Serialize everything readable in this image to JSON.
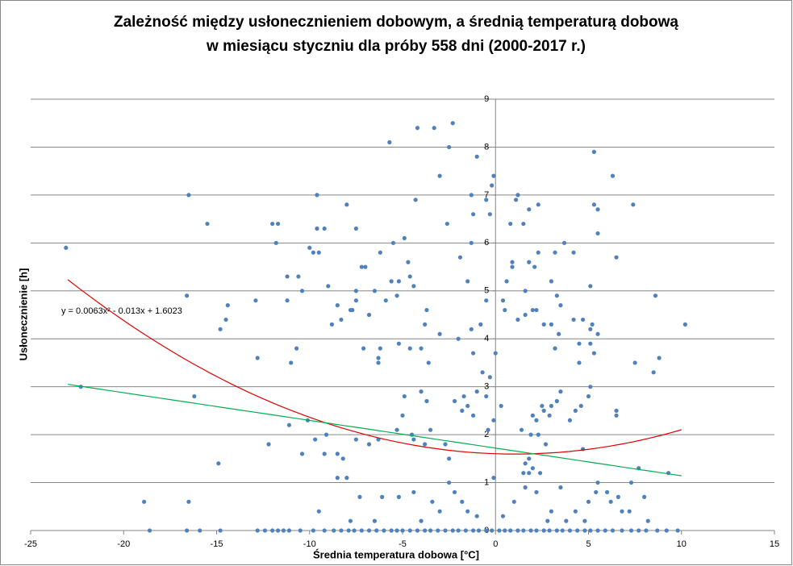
{
  "chart_data": {
    "type": "scatter",
    "title": [
      "Zależność między usłonecznieniem dobowym, a średnią temperaturą dobową",
      "w miesiącu styczniu dla próby 558 dni (2000-2017 r.)"
    ],
    "x_label": "Średnia temperatura dobowa [°C]",
    "y_label": "Usłonecznienie [h]",
    "annotation": "y = 0.0063x² - 0.013x + 1.6023",
    "color": "#4f81bd",
    "xlim": [
      -25,
      15
    ],
    "xticks": [
      -25,
      -20,
      -15,
      -10,
      -5,
      0,
      5,
      10,
      15
    ],
    "ylim": [
      0,
      9
    ],
    "yticks": [
      0,
      1,
      2,
      3,
      4,
      5,
      6,
      7,
      8,
      9
    ],
    "grid": true,
    "trendlines": [
      {
        "kind": "polynomial",
        "coefficients": [
          0.0063,
          -0.013,
          1.6023
        ],
        "color": "#e00000",
        "x_range": [
          -23,
          10
        ]
      },
      {
        "kind": "linear",
        "coefficients": [
          -0.0578,
          1.72
        ],
        "color": "#00b050",
        "x_range": [
          -23,
          10
        ]
      }
    ],
    "points": [
      [
        -23.1,
        5.9
      ],
      [
        -22.3,
        3.0
      ],
      [
        -16.5,
        7.0
      ],
      [
        -16.6,
        4.9
      ],
      [
        -16.2,
        2.8
      ],
      [
        -15.5,
        6.4
      ],
      [
        -14.8,
        4.2
      ],
      [
        -14.5,
        4.4
      ],
      [
        -14.4,
        4.7
      ],
      [
        -14.9,
        1.4
      ],
      [
        -18.9,
        0.6
      ],
      [
        -16.5,
        0.6
      ],
      [
        -18.6,
        0
      ],
      [
        -16.6,
        0
      ],
      [
        -15.9,
        0
      ],
      [
        -14.8,
        0
      ],
      [
        -12.9,
        4.8
      ],
      [
        -12.8,
        3.6
      ],
      [
        -12.0,
        6.4
      ],
      [
        -11.7,
        6.4
      ],
      [
        -11.8,
        6.0
      ],
      [
        -11.2,
        5.3
      ],
      [
        -11.2,
        4.8
      ],
      [
        -11.0,
        3.5
      ],
      [
        -10.7,
        3.8
      ],
      [
        -10.6,
        5.3
      ],
      [
        -10.4,
        5.0
      ],
      [
        -10.0,
        5.9
      ],
      [
        -9.8,
        5.8
      ],
      [
        -9.6,
        6.3
      ],
      [
        -9.6,
        7.0
      ],
      [
        -9.5,
        5.8
      ],
      [
        -9.2,
        6.3
      ],
      [
        -9.0,
        5.1
      ],
      [
        -8.8,
        4.3
      ],
      [
        -8.5,
        4.7
      ],
      [
        -8.0,
        6.8
      ],
      [
        -8.3,
        4.4
      ],
      [
        -7.5,
        6.3
      ],
      [
        -7.5,
        4.8
      ],
      [
        -7.8,
        4.6
      ],
      [
        -7.7,
        4.6
      ],
      [
        -7.5,
        5.0
      ],
      [
        -7.2,
        5.5
      ],
      [
        -7.0,
        5.5
      ],
      [
        -6.5,
        5.0
      ],
      [
        -6.8,
        4.5
      ],
      [
        -6.2,
        5.8
      ],
      [
        -5.9,
        4.8
      ],
      [
        -5.6,
        5.2
      ],
      [
        -5.5,
        6.0
      ],
      [
        -5.2,
        5.2
      ],
      [
        -5.3,
        4.9
      ],
      [
        -4.9,
        6.1
      ],
      [
        -4.7,
        5.6
      ],
      [
        -4.6,
        5.3
      ],
      [
        -4.4,
        5.1
      ],
      [
        -6.2,
        3.8
      ],
      [
        -6.3,
        3.6
      ],
      [
        -6.3,
        3.5
      ],
      [
        -7.1,
        3.8
      ],
      [
        -5.2,
        3.9
      ],
      [
        -4.6,
        3.8
      ],
      [
        -4.0,
        3.8
      ],
      [
        -5.7,
        8.1
      ],
      [
        -4.2,
        8.4
      ],
      [
        -3.3,
        8.4
      ],
      [
        -2.3,
        8.5
      ],
      [
        -2.5,
        8.0
      ],
      [
        -3.0,
        7.4
      ],
      [
        -4.3,
        6.9
      ],
      [
        -2.6,
        6.4
      ],
      [
        -1.9,
        5.7
      ],
      [
        -1.3,
        6.0
      ],
      [
        -1.5,
        5.2
      ],
      [
        -0.5,
        4.8
      ],
      [
        -0.8,
        4.3
      ],
      [
        0.0,
        3.7
      ],
      [
        -0.3,
        3.2
      ],
      [
        -1.3,
        4.2
      ],
      [
        -2.0,
        4.0
      ],
      [
        -1.2,
        3.7
      ],
      [
        -3.0,
        4.1
      ],
      [
        -3.7,
        4.6
      ],
      [
        -3.8,
        4.3
      ],
      [
        -3.6,
        3.5
      ],
      [
        -4.0,
        2.9
      ],
      [
        -3.7,
        2.7
      ],
      [
        -2.2,
        2.7
      ],
      [
        -1.8,
        2.5
      ],
      [
        -1.7,
        2.8
      ],
      [
        -1.5,
        2.6
      ],
      [
        -1.2,
        2.4
      ],
      [
        -0.5,
        2.8
      ],
      [
        -0.7,
        3.3
      ],
      [
        -1.0,
        2.9
      ],
      [
        0.3,
        2.6
      ],
      [
        -0.1,
        2.3
      ],
      [
        -0.4,
        2.1
      ],
      [
        -4.9,
        2.8
      ],
      [
        -5.0,
        2.4
      ],
      [
        -4.5,
        2.0
      ],
      [
        -4.4,
        1.9
      ],
      [
        -3.8,
        1.8
      ],
      [
        -3.5,
        2.1
      ],
      [
        -2.7,
        1.8
      ],
      [
        -2.5,
        1.5
      ],
      [
        -1.3,
        7.0
      ],
      [
        -1.0,
        7.8
      ],
      [
        -0.5,
        6.9
      ],
      [
        -0.2,
        7.2
      ],
      [
        -0.1,
        7.4
      ],
      [
        -0.3,
        6.6
      ],
      [
        -1.2,
        6.6
      ],
      [
        1.2,
        7.0
      ],
      [
        1.1,
        6.9
      ],
      [
        1.8,
        6.7
      ],
      [
        2.3,
        6.8
      ],
      [
        1.5,
        6.4
      ],
      [
        0.8,
        6.4
      ],
      [
        0.9,
        5.6
      ],
      [
        0.9,
        5.5
      ],
      [
        0.6,
        5.2
      ],
      [
        0.4,
        4.8
      ],
      [
        0.5,
        4.6
      ],
      [
        1.2,
        4.4
      ],
      [
        1.6,
        5.0
      ],
      [
        1.8,
        5.6
      ],
      [
        2.3,
        5.8
      ],
      [
        2.1,
        5.5
      ],
      [
        3.2,
        5.8
      ],
      [
        4.2,
        5.8
      ],
      [
        3.7,
        6.0
      ],
      [
        3.0,
        5.2
      ],
      [
        3.3,
        4.9
      ],
      [
        3.5,
        4.7
      ],
      [
        2.0,
        4.6
      ],
      [
        2.2,
        4.6
      ],
      [
        2.6,
        4.3
      ],
      [
        3.0,
        4.3
      ],
      [
        3.4,
        4.1
      ],
      [
        3.2,
        3.8
      ],
      [
        1.6,
        4.5
      ],
      [
        4.2,
        4.4
      ],
      [
        4.5,
        3.9
      ],
      [
        4.5,
        3.5
      ],
      [
        4.7,
        4.4
      ],
      [
        5.1,
        4.2
      ],
      [
        5.1,
        3.9
      ],
      [
        5.2,
        4.3
      ],
      [
        5.3,
        3.7
      ],
      [
        5.5,
        4.1
      ],
      [
        5.1,
        5.1
      ],
      [
        5.3,
        6.8
      ],
      [
        5.5,
        6.7
      ],
      [
        5.5,
        6.2
      ],
      [
        5.3,
        7.9
      ],
      [
        6.3,
        7.4
      ],
      [
        6.5,
        5.7
      ],
      [
        7.4,
        6.8
      ],
      [
        7.5,
        3.5
      ],
      [
        8.6,
        4.9
      ],
      [
        8.8,
        3.6
      ],
      [
        8.5,
        3.3
      ],
      [
        10.2,
        4.3
      ],
      [
        6.5,
        2.5
      ],
      [
        6.5,
        2.4
      ],
      [
        5.1,
        3.0
      ],
      [
        5.0,
        2.8
      ],
      [
        4.6,
        2.6
      ],
      [
        4.3,
        2.5
      ],
      [
        4.0,
        2.3
      ],
      [
        3.5,
        2.9
      ],
      [
        3.3,
        2.7
      ],
      [
        3.0,
        2.6
      ],
      [
        2.9,
        2.4
      ],
      [
        2.6,
        2.5
      ],
      [
        2.5,
        2.6
      ],
      [
        2.2,
        2.3
      ],
      [
        2.0,
        2.4
      ],
      [
        2.3,
        2.0
      ],
      [
        2.7,
        1.8
      ],
      [
        1.9,
        2.0
      ],
      [
        1.4,
        2.1
      ],
      [
        1.8,
        1.5
      ],
      [
        1.6,
        1.4
      ],
      [
        1.5,
        1.2
      ],
      [
        1.8,
        1.2
      ],
      [
        2.0,
        1.3
      ],
      [
        2.4,
        1.2
      ],
      [
        4.7,
        1.7
      ],
      [
        5.4,
        0.8
      ],
      [
        6.0,
        0.8
      ],
      [
        5.5,
        1.0
      ],
      [
        6.6,
        0.7
      ],
      [
        7.3,
        1.0
      ],
      [
        7.7,
        1.3
      ],
      [
        9.3,
        1.2
      ],
      [
        8.0,
        0.7
      ],
      [
        7.2,
        0.4
      ],
      [
        8.2,
        0.2
      ],
      [
        -12.2,
        1.8
      ],
      [
        -11.1,
        2.2
      ],
      [
        -10.1,
        2.3
      ],
      [
        -10.4,
        1.6
      ],
      [
        -9.7,
        1.9
      ],
      [
        -9.1,
        2.0
      ],
      [
        -9.2,
        1.6
      ],
      [
        -8.5,
        1.6
      ],
      [
        -8.2,
        1.5
      ],
      [
        -8.0,
        1.1
      ],
      [
        -7.5,
        1.9
      ],
      [
        -6.8,
        1.8
      ],
      [
        -6.3,
        1.9
      ],
      [
        -5.3,
        2.1
      ],
      [
        -8.5,
        1.1
      ],
      [
        -9.5,
        0.4
      ],
      [
        -7.3,
        0.7
      ],
      [
        -6.1,
        0.7
      ],
      [
        -5.2,
        0.7
      ],
      [
        -4.4,
        0.8
      ],
      [
        -3.4,
        0.6
      ],
      [
        -2.5,
        1.0
      ],
      [
        -2.2,
        0.8
      ],
      [
        -3.0,
        0.4
      ],
      [
        -1.8,
        0.6
      ],
      [
        -1.5,
        0.4
      ],
      [
        -1.0,
        0.3
      ],
      [
        -0.1,
        1.1
      ],
      [
        0.4,
        0.3
      ],
      [
        1.0,
        0.6
      ],
      [
        1.6,
        0.9
      ],
      [
        2.2,
        0.8
      ],
      [
        3.0,
        0.4
      ],
      [
        3.5,
        0.9
      ],
      [
        4.3,
        0.4
      ],
      [
        5.0,
        0.6
      ],
      [
        6.2,
        0.6
      ],
      [
        6.8,
        0.4
      ],
      [
        -7.8,
        0.2
      ],
      [
        -6.5,
        0.2
      ],
      [
        -4.0,
        0.2
      ],
      [
        2.8,
        0.2
      ],
      [
        3.8,
        0.2
      ],
      [
        4.8,
        0.2
      ],
      [
        -12.8,
        0
      ],
      [
        -12.4,
        0
      ],
      [
        -12.0,
        0
      ],
      [
        -11.7,
        0
      ],
      [
        -11.4,
        0
      ],
      [
        -11.1,
        0
      ],
      [
        -10.5,
        0
      ],
      [
        -9.8,
        0
      ],
      [
        -9.2,
        0
      ],
      [
        -8.7,
        0
      ],
      [
        -8.3,
        0
      ],
      [
        -7.9,
        0
      ],
      [
        -7.6,
        0
      ],
      [
        -7.2,
        0
      ],
      [
        -6.8,
        0
      ],
      [
        -6.4,
        0
      ],
      [
        -6.0,
        0
      ],
      [
        -5.6,
        0
      ],
      [
        -5.3,
        0
      ],
      [
        -5.0,
        0
      ],
      [
        -4.6,
        0
      ],
      [
        -4.2,
        0
      ],
      [
        -3.8,
        0
      ],
      [
        -3.5,
        0
      ],
      [
        -3.1,
        0
      ],
      [
        -2.7,
        0
      ],
      [
        -2.3,
        0
      ],
      [
        -2.0,
        0
      ],
      [
        -1.6,
        0
      ],
      [
        -1.2,
        0
      ],
      [
        -0.9,
        0
      ],
      [
        -0.5,
        0
      ],
      [
        -0.2,
        0
      ],
      [
        0.2,
        0
      ],
      [
        0.5,
        0
      ],
      [
        0.8,
        0
      ],
      [
        1.2,
        0
      ],
      [
        1.5,
        0
      ],
      [
        1.9,
        0
      ],
      [
        2.2,
        0
      ],
      [
        2.6,
        0
      ],
      [
        2.9,
        0
      ],
      [
        3.3,
        0
      ],
      [
        3.6,
        0
      ],
      [
        4.0,
        0
      ],
      [
        4.4,
        0
      ],
      [
        4.8,
        0
      ],
      [
        5.1,
        0
      ],
      [
        5.5,
        0
      ],
      [
        5.9,
        0
      ],
      [
        6.3,
        0
      ],
      [
        6.8,
        0
      ],
      [
        7.3,
        0
      ],
      [
        7.7,
        0
      ],
      [
        8.1,
        0
      ],
      [
        8.7,
        0
      ],
      [
        9.2,
        0
      ],
      [
        9.8,
        0
      ]
    ]
  }
}
